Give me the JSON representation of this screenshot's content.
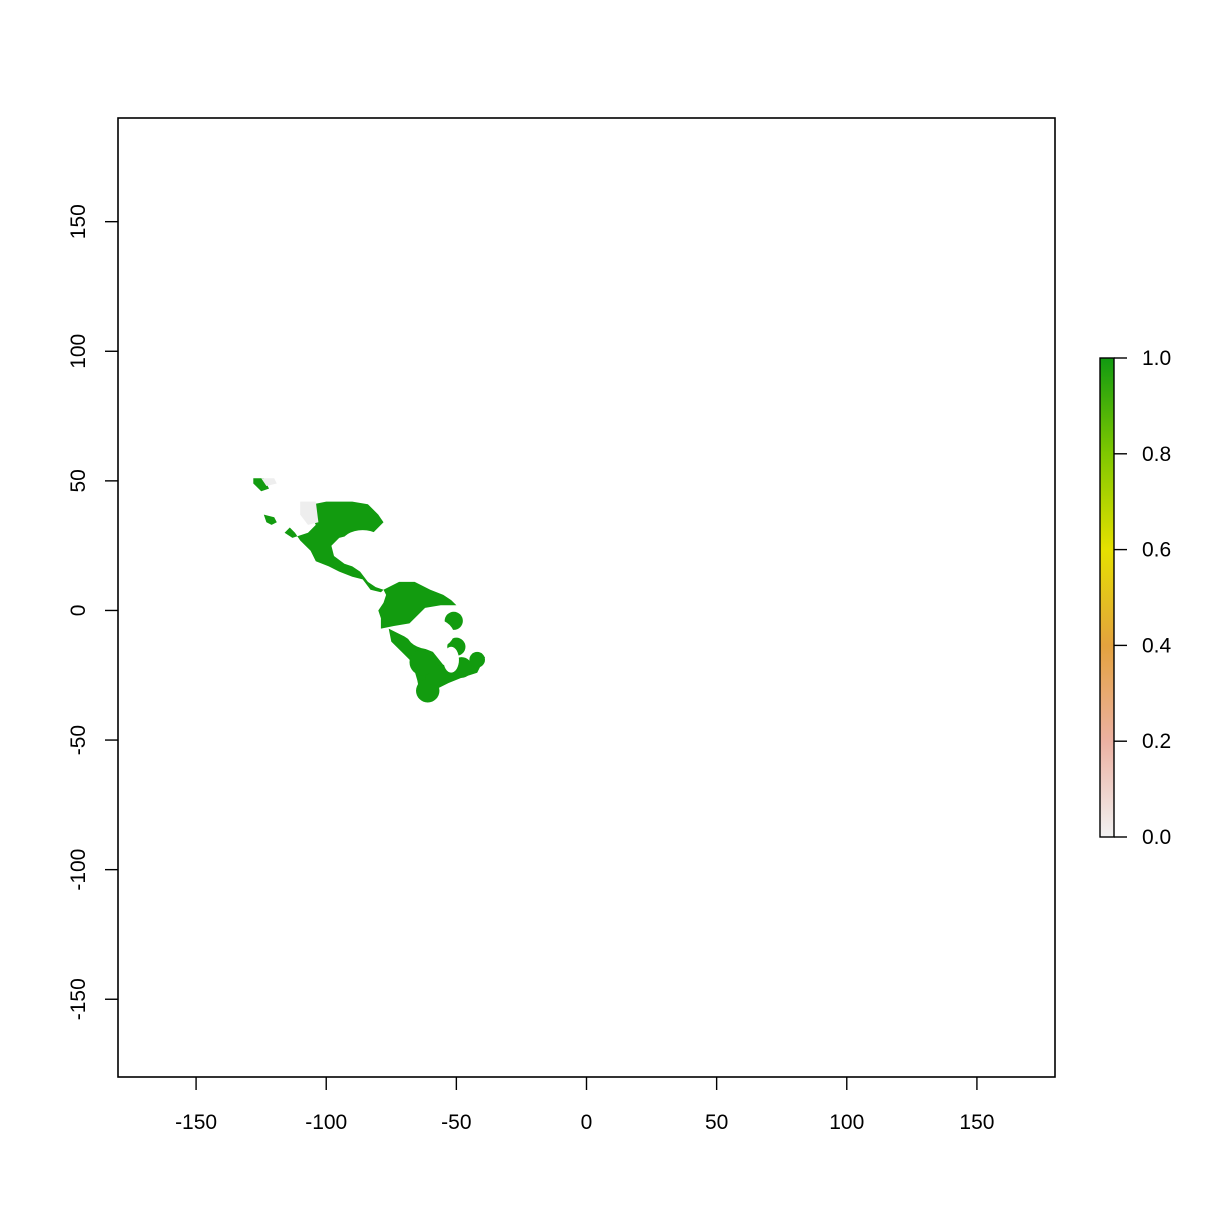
{
  "chart_data": {
    "type": "heatmap",
    "title": "",
    "xlabel": "",
    "ylabel": "",
    "xlim": [
      -180,
      180
    ],
    "ylim": [
      -180,
      190
    ],
    "x_ticks": [
      "-150",
      "-100",
      "-50",
      "0",
      "50",
      "100",
      "150"
    ],
    "x_tick_values": [
      -150,
      -100,
      -50,
      0,
      50,
      100,
      150
    ],
    "y_ticks": [
      "-150",
      "-100",
      "-50",
      "0",
      "50",
      "100",
      "150"
    ],
    "y_tick_values": [
      -150,
      -100,
      -50,
      0,
      50,
      100,
      150
    ],
    "legend": {
      "placement": "right",
      "range": [
        0,
        1
      ],
      "ticks": [
        "0.0",
        "0.2",
        "0.4",
        "0.6",
        "0.8",
        "1.0"
      ],
      "tick_values": [
        0,
        0.2,
        0.4,
        0.6,
        0.8,
        1.0
      ],
      "colors": [
        "#f2f2f2",
        "#ecb1a2",
        "#e4a23e",
        "#e5e000",
        "#7fc800",
        "#119a11"
      ]
    },
    "region_color": "#129b0f",
    "low_color": "#eeeeee",
    "regions": [
      {
        "name": "north-america",
        "value": 1.0,
        "lonlat": [
          [
            -100,
            42
          ],
          [
            -90,
            42
          ],
          [
            -84,
            41
          ],
          [
            -80,
            37
          ],
          [
            -78,
            34
          ],
          [
            -80,
            32
          ],
          [
            -82,
            30
          ],
          [
            -84,
            29
          ],
          [
            -88,
            30
          ],
          [
            -91,
            29
          ],
          [
            -95,
            28
          ],
          [
            -98,
            25
          ],
          [
            -97,
            21
          ],
          [
            -93,
            18
          ],
          [
            -90,
            17
          ],
          [
            -87,
            15
          ],
          [
            -84,
            11
          ],
          [
            -81,
            9
          ],
          [
            -78,
            8
          ],
          [
            -79,
            7
          ],
          [
            -83,
            8
          ],
          [
            -86,
            12
          ],
          [
            -90,
            13
          ],
          [
            -95,
            15
          ],
          [
            -99,
            17
          ],
          [
            -104,
            19
          ],
          [
            -106,
            23
          ],
          [
            -110,
            27
          ],
          [
            -112,
            30
          ],
          [
            -114,
            32
          ],
          [
            -116,
            30
          ],
          [
            -113,
            28
          ],
          [
            -107,
            30
          ],
          [
            -104,
            33
          ],
          [
            -106,
            37
          ],
          [
            -105,
            41
          ]
        ]
      },
      {
        "name": "south-america",
        "value": 1.0,
        "lonlat": [
          [
            -78,
            8
          ],
          [
            -72,
            11
          ],
          [
            -66,
            11
          ],
          [
            -60,
            8
          ],
          [
            -55,
            6
          ],
          [
            -52,
            4
          ],
          [
            -50,
            2
          ],
          [
            -56,
            2
          ],
          [
            -62,
            1
          ],
          [
            -65,
            -2
          ],
          [
            -68,
            -5
          ],
          [
            -74,
            -6
          ],
          [
            -79,
            -7
          ],
          [
            -79,
            -3
          ],
          [
            -80,
            0
          ],
          [
            -78,
            3
          ],
          [
            -77,
            6
          ]
        ]
      },
      {
        "name": "south-america-south",
        "value": 1.0,
        "lonlat": [
          [
            -76,
            -7
          ],
          [
            -70,
            -10
          ],
          [
            -64,
            -14
          ],
          [
            -59,
            -16
          ],
          [
            -55,
            -21
          ],
          [
            -50,
            -20
          ],
          [
            -45,
            -20
          ],
          [
            -41,
            -17
          ],
          [
            -39,
            -18
          ],
          [
            -42,
            -24
          ],
          [
            -48,
            -26
          ],
          [
            -53,
            -28
          ],
          [
            -57,
            -30
          ],
          [
            -61,
            -34
          ],
          [
            -64,
            -32
          ],
          [
            -65,
            -27
          ],
          [
            -67,
            -20
          ],
          [
            -71,
            -16
          ],
          [
            -75,
            -12
          ]
        ]
      },
      {
        "name": "pacific-northwest",
        "value": 1.0,
        "lonlat": [
          [
            -128,
            51
          ],
          [
            -124,
            51
          ],
          [
            -122,
            47
          ],
          [
            -125,
            46
          ],
          [
            -128,
            49
          ]
        ]
      },
      {
        "name": "california-fragment",
        "value": 1.0,
        "lonlat": [
          [
            -124,
            37
          ],
          [
            -120,
            36
          ],
          [
            -119,
            34
          ],
          [
            -121,
            33
          ],
          [
            -123,
            34
          ]
        ]
      },
      {
        "name": "interior-west",
        "value": 0.05,
        "lonlat": [
          [
            -110,
            42
          ],
          [
            -104,
            42
          ],
          [
            -103,
            34
          ],
          [
            -107,
            33
          ],
          [
            -110,
            37
          ]
        ]
      },
      {
        "name": "interior-northwest",
        "value": 0.05,
        "lonlat": [
          [
            -125,
            51
          ],
          [
            -120,
            51
          ],
          [
            -119,
            49
          ],
          [
            -123,
            48
          ]
        ]
      }
    ],
    "blobs": [
      {
        "lon": -51,
        "lat": -4,
        "r": 3.5,
        "value": 1.0
      },
      {
        "lon": -61,
        "lat": -31,
        "r": 4.5,
        "value": 1.0
      },
      {
        "lon": -50,
        "lat": -14,
        "r": 3.5,
        "value": 1.0
      },
      {
        "lon": -58,
        "lat": -25,
        "r": 4.0,
        "value": 1.0
      },
      {
        "lon": -63,
        "lat": -20,
        "r": 5.0,
        "value": 1.0
      },
      {
        "lon": -48,
        "lat": -22,
        "r": 4.0,
        "value": 1.0
      },
      {
        "lon": -42,
        "lat": -19,
        "r": 3.0,
        "value": 1.0
      }
    ],
    "gaps": [
      {
        "lon": -86,
        "lat": 26,
        "rx": 8,
        "ry": 5
      },
      {
        "lon": -60,
        "lat": -9,
        "rx": 9,
        "ry": 6
      },
      {
        "lon": -52,
        "lat": -19,
        "rx": 3,
        "ry": 5
      }
    ]
  }
}
